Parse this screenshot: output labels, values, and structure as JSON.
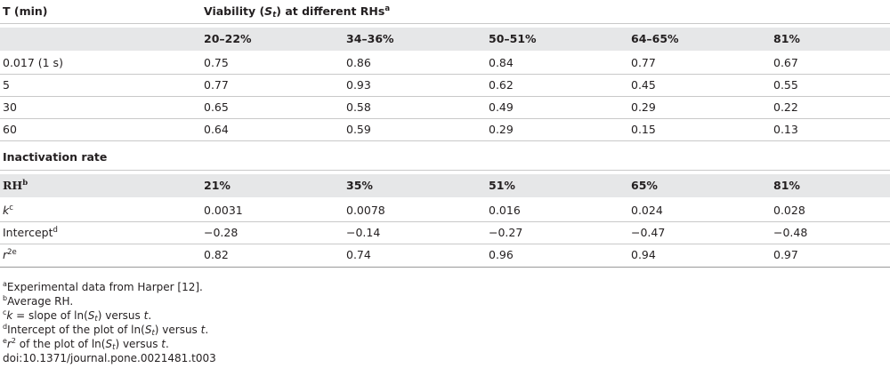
{
  "table1": {
    "col0_header": "T (min)",
    "title_prefix": "Viability (",
    "title_var": "S",
    "title_sub": "t",
    "title_suffix": ") at different RHs",
    "title_sup": "a",
    "columns": [
      "20–22%",
      "34–36%",
      "50–51%",
      "64–65%",
      "81%"
    ],
    "rows": [
      {
        "label": "0.017 (1 s)",
        "values": [
          "0.75",
          "0.86",
          "0.84",
          "0.77",
          "0.67"
        ]
      },
      {
        "label": "5",
        "values": [
          "0.77",
          "0.93",
          "0.62",
          "0.45",
          "0.55"
        ]
      },
      {
        "label": "30",
        "values": [
          "0.65",
          "0.58",
          "0.49",
          "0.29",
          "0.22"
        ]
      },
      {
        "label": "60",
        "values": [
          "0.64",
          "0.59",
          "0.29",
          "0.15",
          "0.13"
        ]
      }
    ]
  },
  "table2": {
    "section_title": "Inactivation rate",
    "col0_header": "RH",
    "col0_header_sup": "b",
    "columns": [
      "21%",
      "35%",
      "51%",
      "65%",
      "81%"
    ],
    "rows": [
      {
        "label": "k",
        "label_sup": "c",
        "values": [
          "0.0031",
          "0.0078",
          "0.016",
          "0.024",
          "0.028"
        ]
      },
      {
        "label": "Intercept",
        "label_sup": "d",
        "values": [
          "−0.28",
          "−0.14",
          "−0.27",
          "−0.47",
          "−0.48"
        ]
      },
      {
        "label": "r",
        "label_sup": "2e",
        "values": [
          "0.82",
          "0.74",
          "0.96",
          "0.94",
          "0.97"
        ]
      }
    ]
  },
  "footnotes": {
    "a": {
      "sup": "a",
      "text": "Experimental data from Harper [12]."
    },
    "b": {
      "sup": "b",
      "text": "Average RH."
    },
    "c": {
      "sup": "c",
      "var": "k",
      "pre": " = slope of ln(",
      "s": "S",
      "sub": "t",
      "post": ") versus ",
      "t": "t",
      "end": "."
    },
    "d": {
      "sup": "d",
      "pre": "Intercept of the plot of ln(",
      "s": "S",
      "sub": "t",
      "post": ") versus ",
      "t": "t",
      "end": "."
    },
    "e": {
      "sup": "e",
      "var": "r",
      "varsup": "2",
      "pre": " of the plot of ln(",
      "s": "S",
      "sub": "t",
      "post": ") versus ",
      "t": "t",
      "end": "."
    },
    "doi": "doi:10.1371/journal.pone.0021481.t003"
  }
}
